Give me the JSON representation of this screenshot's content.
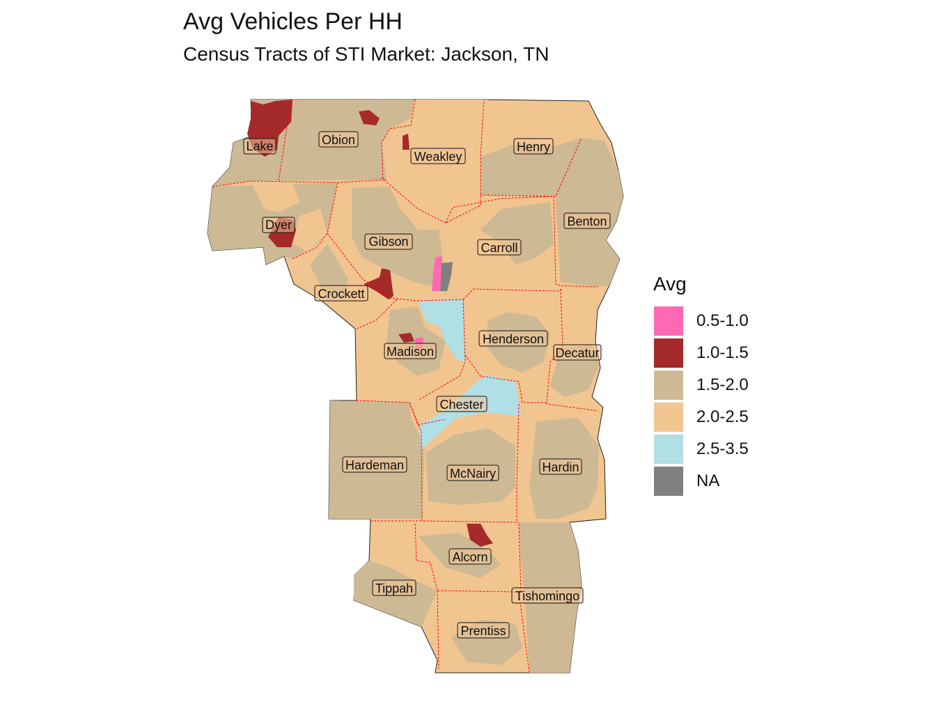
{
  "title": "Avg Vehicles Per HH",
  "subtitle": "Census Tracts of STI Market: Jackson, TN",
  "colors": {
    "c05": "#ff69b4",
    "c10": "#a52a2a",
    "c15": "#cdb994",
    "c20": "#f1c590",
    "c25": "#b0dfe6",
    "na": "#808080",
    "county_border": "#ff0000"
  },
  "legend": {
    "title": "Avg",
    "items": [
      {
        "label": "0.5-1.0",
        "color": "#ff69b4"
      },
      {
        "label": "1.0-1.5",
        "color": "#a52a2a"
      },
      {
        "label": "1.5-2.0",
        "color": "#cdb994"
      },
      {
        "label": "2.0-2.5",
        "color": "#f1c590"
      },
      {
        "label": "2.5-3.5",
        "color": "#b0dfe6"
      },
      {
        "label": "NA",
        "color": "#808080"
      }
    ]
  },
  "counties": [
    {
      "name": "Lake"
    },
    {
      "name": "Obion"
    },
    {
      "name": "Weakley"
    },
    {
      "name": "Henry"
    },
    {
      "name": "Dyer"
    },
    {
      "name": "Gibson"
    },
    {
      "name": "Carroll"
    },
    {
      "name": "Benton"
    },
    {
      "name": "Crockett"
    },
    {
      "name": "Madison"
    },
    {
      "name": "Henderson"
    },
    {
      "name": "Decatur"
    },
    {
      "name": "Chester"
    },
    {
      "name": "Hardeman"
    },
    {
      "name": "McNairy"
    },
    {
      "name": "Hardin"
    },
    {
      "name": "Alcorn"
    },
    {
      "name": "Tippah"
    },
    {
      "name": "Tishomingo"
    },
    {
      "name": "Prentiss"
    }
  ]
}
